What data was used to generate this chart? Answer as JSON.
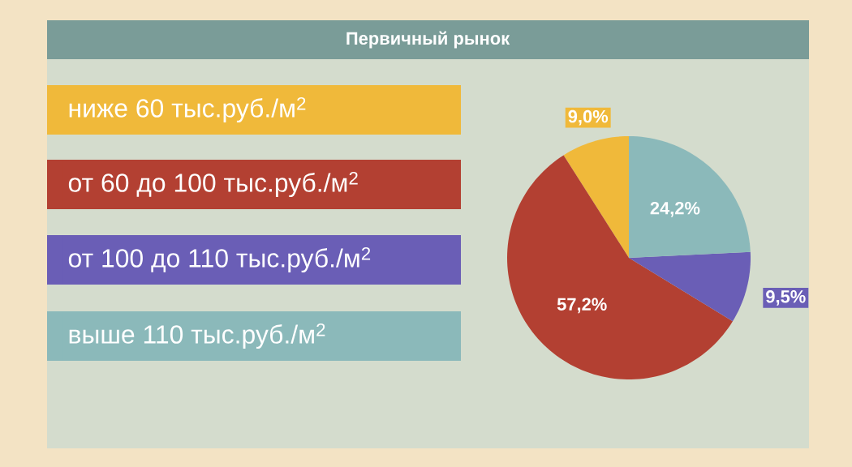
{
  "chart_data": {
    "type": "pie",
    "title": "Первичный рынок",
    "categories": [
      "ниже 60 тыс.руб./м$^{2}$",
      "от 60 до 100 тыс.руб./м$^{2}$",
      "от 100 до 110 тыс.руб./м$^{2}$",
      "выше 110 тыс.руб./м$^{2}$"
    ],
    "values": [
      9.0,
      57.2,
      9.5,
      24.2
    ],
    "colors": [
      "#f0b93a",
      "#b34032",
      "#6a5eb6",
      "#8bb9ba"
    ],
    "value_labels": [
      "9,0%",
      "57,2%",
      "9,5%",
      "24,2%"
    ],
    "legend": "left"
  }
}
